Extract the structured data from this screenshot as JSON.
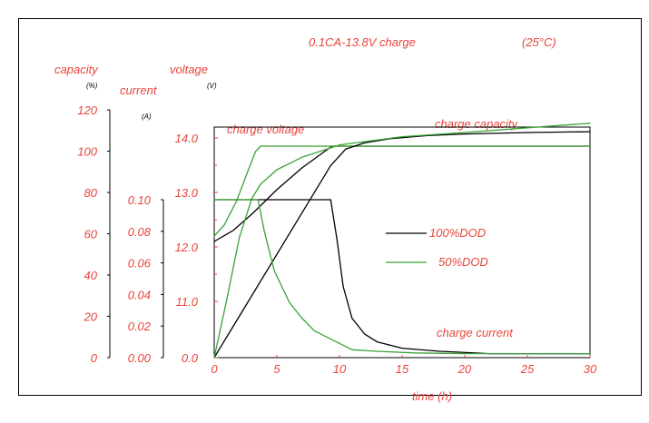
{
  "chart_data": {
    "type": "line",
    "title": "0.1CA-13.8V charge",
    "subtitle": "(25°C)",
    "xlabel": "time (h)",
    "x_ticks": [
      "0",
      "5",
      "10",
      "15",
      "20",
      "25",
      "30"
    ],
    "xlim": [
      0,
      30
    ],
    "axes": {
      "capacity": {
        "label": "capacity",
        "unit": "(%)",
        "ticks": [
          "0",
          "20",
          "40",
          "60",
          "80",
          "100",
          "120"
        ],
        "ylim": [
          0,
          120
        ]
      },
      "current": {
        "label": "current",
        "unit": "(A)",
        "ticks": [
          "0.00",
          "0.02",
          "0.04",
          "0.06",
          "0.08",
          "0.10"
        ],
        "ylim": [
          0,
          0.1
        ]
      },
      "voltage": {
        "label": "voltage",
        "unit": "(V)",
        "ticks": [
          "0.0",
          "11.0",
          "12.0",
          "13.0",
          "14.0"
        ],
        "ylim_note": "broken axis"
      }
    },
    "legend": [
      {
        "name": "100%DOD",
        "color": "#000000"
      },
      {
        "name": "50%DOD",
        "color": "#3aa335"
      }
    ],
    "annotations": [
      "charge voltage",
      "charge capacity",
      "charge current"
    ],
    "series": [
      {
        "name": "100%DOD",
        "quantity": "charge voltage",
        "axis": "voltage",
        "color": "#000000",
        "x": [
          0,
          1.5,
          3,
          5,
          7,
          8.5,
          9.4,
          30
        ],
        "y": [
          12.1,
          12.3,
          12.6,
          13.05,
          13.45,
          13.7,
          13.85,
          13.85
        ]
      },
      {
        "name": "50%DOD",
        "quantity": "charge voltage",
        "axis": "voltage",
        "color": "#3aa335",
        "x": [
          0,
          0.8,
          1.8,
          2.7,
          3.3,
          3.7,
          30
        ],
        "y": [
          12.2,
          12.4,
          12.85,
          13.4,
          13.75,
          13.85,
          13.85
        ]
      },
      {
        "name": "100%DOD",
        "quantity": "charge capacity",
        "axis": "capacity",
        "color": "#000000",
        "x": [
          0,
          9.3,
          10.5,
          12,
          14,
          17,
          20,
          25,
          30
        ],
        "y": [
          0,
          93,
          101,
          104,
          106,
          107.5,
          108.3,
          109,
          109.4
        ]
      },
      {
        "name": "50%DOD",
        "quantity": "charge capacity",
        "axis": "capacity",
        "color": "#3aa335",
        "x": [
          0,
          1,
          2,
          3,
          3.7,
          5,
          7,
          10,
          15,
          20,
          25,
          30
        ],
        "y": [
          0,
          28,
          58,
          77,
          84,
          91,
          97,
          103,
          107,
          109,
          111.3,
          113.5
        ]
      },
      {
        "name": "100%DOD",
        "quantity": "charge current",
        "axis": "current",
        "color": "#000000",
        "x": [
          0,
          9.3,
          9.8,
          10.3,
          11,
          12,
          13,
          15,
          18,
          22,
          30
        ],
        "y": [
          0.1,
          0.1,
          0.075,
          0.045,
          0.025,
          0.015,
          0.01,
          0.006,
          0.004,
          0.0025,
          0.0025
        ]
      },
      {
        "name": "50%DOD",
        "quantity": "charge current",
        "axis": "current",
        "color": "#3aa335",
        "x": [
          0,
          3.5,
          4,
          4.8,
          6,
          7,
          8,
          9,
          10,
          11,
          13,
          16,
          20,
          25,
          30
        ],
        "y": [
          0.1,
          0.1,
          0.08,
          0.055,
          0.035,
          0.025,
          0.017,
          0.013,
          0.009,
          0.005,
          0.004,
          0.003,
          0.0025,
          0.0025,
          0.0025
        ]
      }
    ]
  }
}
